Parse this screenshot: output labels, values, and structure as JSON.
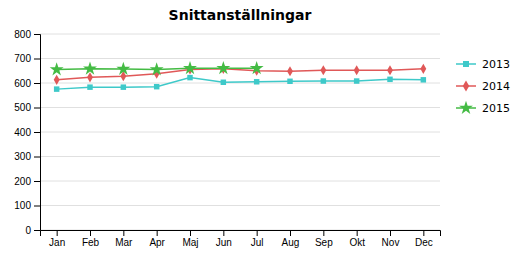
{
  "chart_data": {
    "type": "line",
    "title": "Snittanställningar",
    "categories": [
      "Jan",
      "Feb",
      "Mar",
      "Apr",
      "Maj",
      "Jun",
      "Jul",
      "Aug",
      "Sep",
      "Okt",
      "Nov",
      "Dec"
    ],
    "series": [
      {
        "name": "2013",
        "color": "#3ec9c9",
        "marker": "square",
        "values": [
          575,
          583,
          583,
          585,
          622,
          603,
          605,
          607,
          608,
          608,
          615,
          613
        ]
      },
      {
        "name": "2014",
        "color": "#e05858",
        "marker": "diamond",
        "values": [
          613,
          623,
          628,
          638,
          655,
          658,
          650,
          648,
          652,
          652,
          652,
          658
        ]
      },
      {
        "name": "2015",
        "color": "#44bb44",
        "marker": "star",
        "values": [
          655,
          658,
          657,
          655,
          660,
          660,
          660,
          null,
          null,
          null,
          null,
          null
        ]
      }
    ],
    "ylim": [
      0,
      800
    ],
    "yticks": [
      0,
      100,
      200,
      300,
      400,
      500,
      600,
      700,
      800
    ],
    "grid": true,
    "legend": "right"
  }
}
